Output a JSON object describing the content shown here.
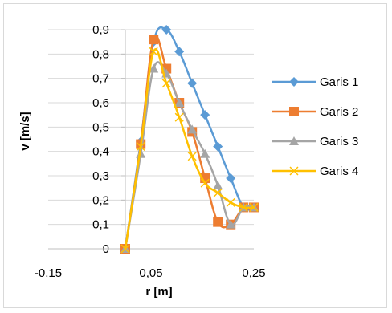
{
  "chart_data": {
    "type": "line",
    "title": "",
    "xlabel": "r [m]",
    "ylabel": "v [m/s]",
    "xlim": [
      -0.15,
      0.25
    ],
    "ylim": [
      0,
      0.9
    ],
    "xticks": [
      "-0,15",
      "0,05",
      "0,25"
    ],
    "yticks": [
      "0",
      "0,1",
      "0,2",
      "0,3",
      "0,4",
      "0,5",
      "0,6",
      "0,7",
      "0,8",
      "0,9"
    ],
    "grid": "horizontal",
    "legend_position": "right",
    "series": [
      {
        "name": "Garis 1",
        "color": "#5B9BD5",
        "marker": "diamond",
        "x": [
          0,
          0.03,
          0.055,
          0.08,
          0.105,
          0.13,
          0.155,
          0.18,
          0.205,
          0.23,
          0.25
        ],
        "y": [
          0,
          0.44,
          0.85,
          0.9,
          0.81,
          0.68,
          0.55,
          0.42,
          0.29,
          0.17,
          0.17
        ]
      },
      {
        "name": "Garis 2",
        "color": "#ED7D31",
        "marker": "square",
        "x": [
          0,
          0.03,
          0.055,
          0.08,
          0.105,
          0.13,
          0.155,
          0.18,
          0.205,
          0.23,
          0.25
        ],
        "y": [
          0,
          0.43,
          0.86,
          0.74,
          0.6,
          0.48,
          0.29,
          0.11,
          0.1,
          0.17,
          0.17
        ]
      },
      {
        "name": "Garis 3",
        "color": "#A5A5A5",
        "marker": "triangle",
        "x": [
          0,
          0.03,
          0.055,
          0.08,
          0.105,
          0.13,
          0.155,
          0.18,
          0.205,
          0.23,
          0.25
        ],
        "y": [
          0,
          0.39,
          0.74,
          0.72,
          0.6,
          0.49,
          0.39,
          0.26,
          0.1,
          0.17,
          0.17
        ]
      },
      {
        "name": "Garis 4",
        "color": "#FFC000",
        "marker": "x",
        "x": [
          0,
          0.03,
          0.055,
          0.08,
          0.105,
          0.13,
          0.155,
          0.18,
          0.205,
          0.23,
          0.25
        ],
        "y": [
          0,
          0.42,
          0.81,
          0.68,
          0.54,
          0.38,
          0.27,
          0.23,
          0.19,
          0.17,
          0.17
        ]
      }
    ]
  }
}
